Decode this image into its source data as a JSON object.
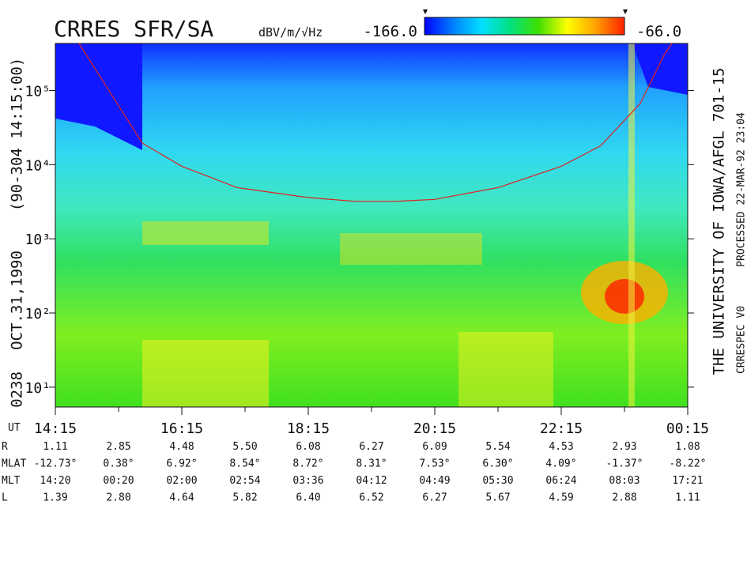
{
  "chart_data": {
    "type": "spectrogram",
    "title": "CRRES SFR/SA",
    "colorbar": {
      "unit": "dBV/m/√Hz",
      "min": {
        "value": -166,
        "label": "-166.0"
      },
      "max": {
        "value": -66,
        "label": "-66.0"
      },
      "colors": [
        "#0000ff",
        "#0080ff",
        "#00e0ff",
        "#00e080",
        "#40e000",
        "#ffff00",
        "#ffa000",
        "#ff2000"
      ]
    },
    "left_labels": [
      "0238",
      "OCT.31,1990",
      "(90-304 14:15:00)"
    ],
    "right_label": "THE UNIVERSITY OF IOWA/AFGL 701-15",
    "processing_labels": [
      "CRRESPEC V0",
      "PROCESSED 22-MAR-92 23:04"
    ],
    "x_axis_label": "UT",
    "xlim": [
      14.25,
      24.25
    ],
    "xticks": [
      {
        "value": 14.25,
        "label": "14:15"
      },
      {
        "value": 16.25,
        "label": "16:15"
      },
      {
        "value": 18.25,
        "label": "18:15"
      },
      {
        "value": 20.25,
        "label": "20:15"
      },
      {
        "value": 22.25,
        "label": "22:15"
      },
      {
        "value": 24.25,
        "label": "00:15"
      }
    ],
    "xminor_ticks": [
      15.25,
      17.25,
      19.25,
      21.25,
      23.25
    ],
    "log_y": true,
    "ylim": [
      5.4,
      430000
    ],
    "yticks": [
      {
        "value": 10,
        "label": "10¹"
      },
      {
        "value": 100,
        "label": "10²"
      },
      {
        "value": 1000,
        "label": "10³"
      },
      {
        "value": 10000,
        "label": "10⁴"
      },
      {
        "value": 100000,
        "label": "10⁵"
      }
    ],
    "curve": {
      "color": "#e02020",
      "x": [
        14.625,
        15.625,
        16.25,
        17.125,
        18.25,
        19.0,
        19.625,
        20.25,
        21.25,
        22.25,
        22.875,
        23.5,
        23.875,
        24.0
      ],
      "values": [
        430000,
        19500,
        9500,
        4900,
        3600,
        3200,
        3200,
        3400,
        4900,
        9500,
        18000,
        67000,
        300000,
        430000
      ]
    }
  },
  "ephemeris": {
    "rows": [
      {
        "label": "R",
        "values": [
          "1.11",
          "2.85",
          "4.48",
          "5.50",
          "6.08",
          "6.27",
          "6.09",
          "5.54",
          "4.53",
          "2.93",
          "1.08"
        ]
      },
      {
        "label": "MLAT",
        "values": [
          "-12.73°",
          "0.38°",
          "6.92°",
          "8.54°",
          "8.72°",
          "8.31°",
          "7.53°",
          "6.30°",
          "4.09°",
          "-1.37°",
          "-8.22°"
        ]
      },
      {
        "label": "MLT",
        "values": [
          "14:20",
          "00:20",
          "02:00",
          "02:54",
          "03:36",
          "04:12",
          "04:49",
          "05:30",
          "06:24",
          "08:03",
          "17:21"
        ]
      },
      {
        "label": "L",
        "values": [
          "1.39",
          "2.80",
          "4.64",
          "5.82",
          "6.40",
          "6.52",
          "6.27",
          "5.67",
          "4.59",
          "2.88",
          "1.11"
        ]
      }
    ]
  }
}
